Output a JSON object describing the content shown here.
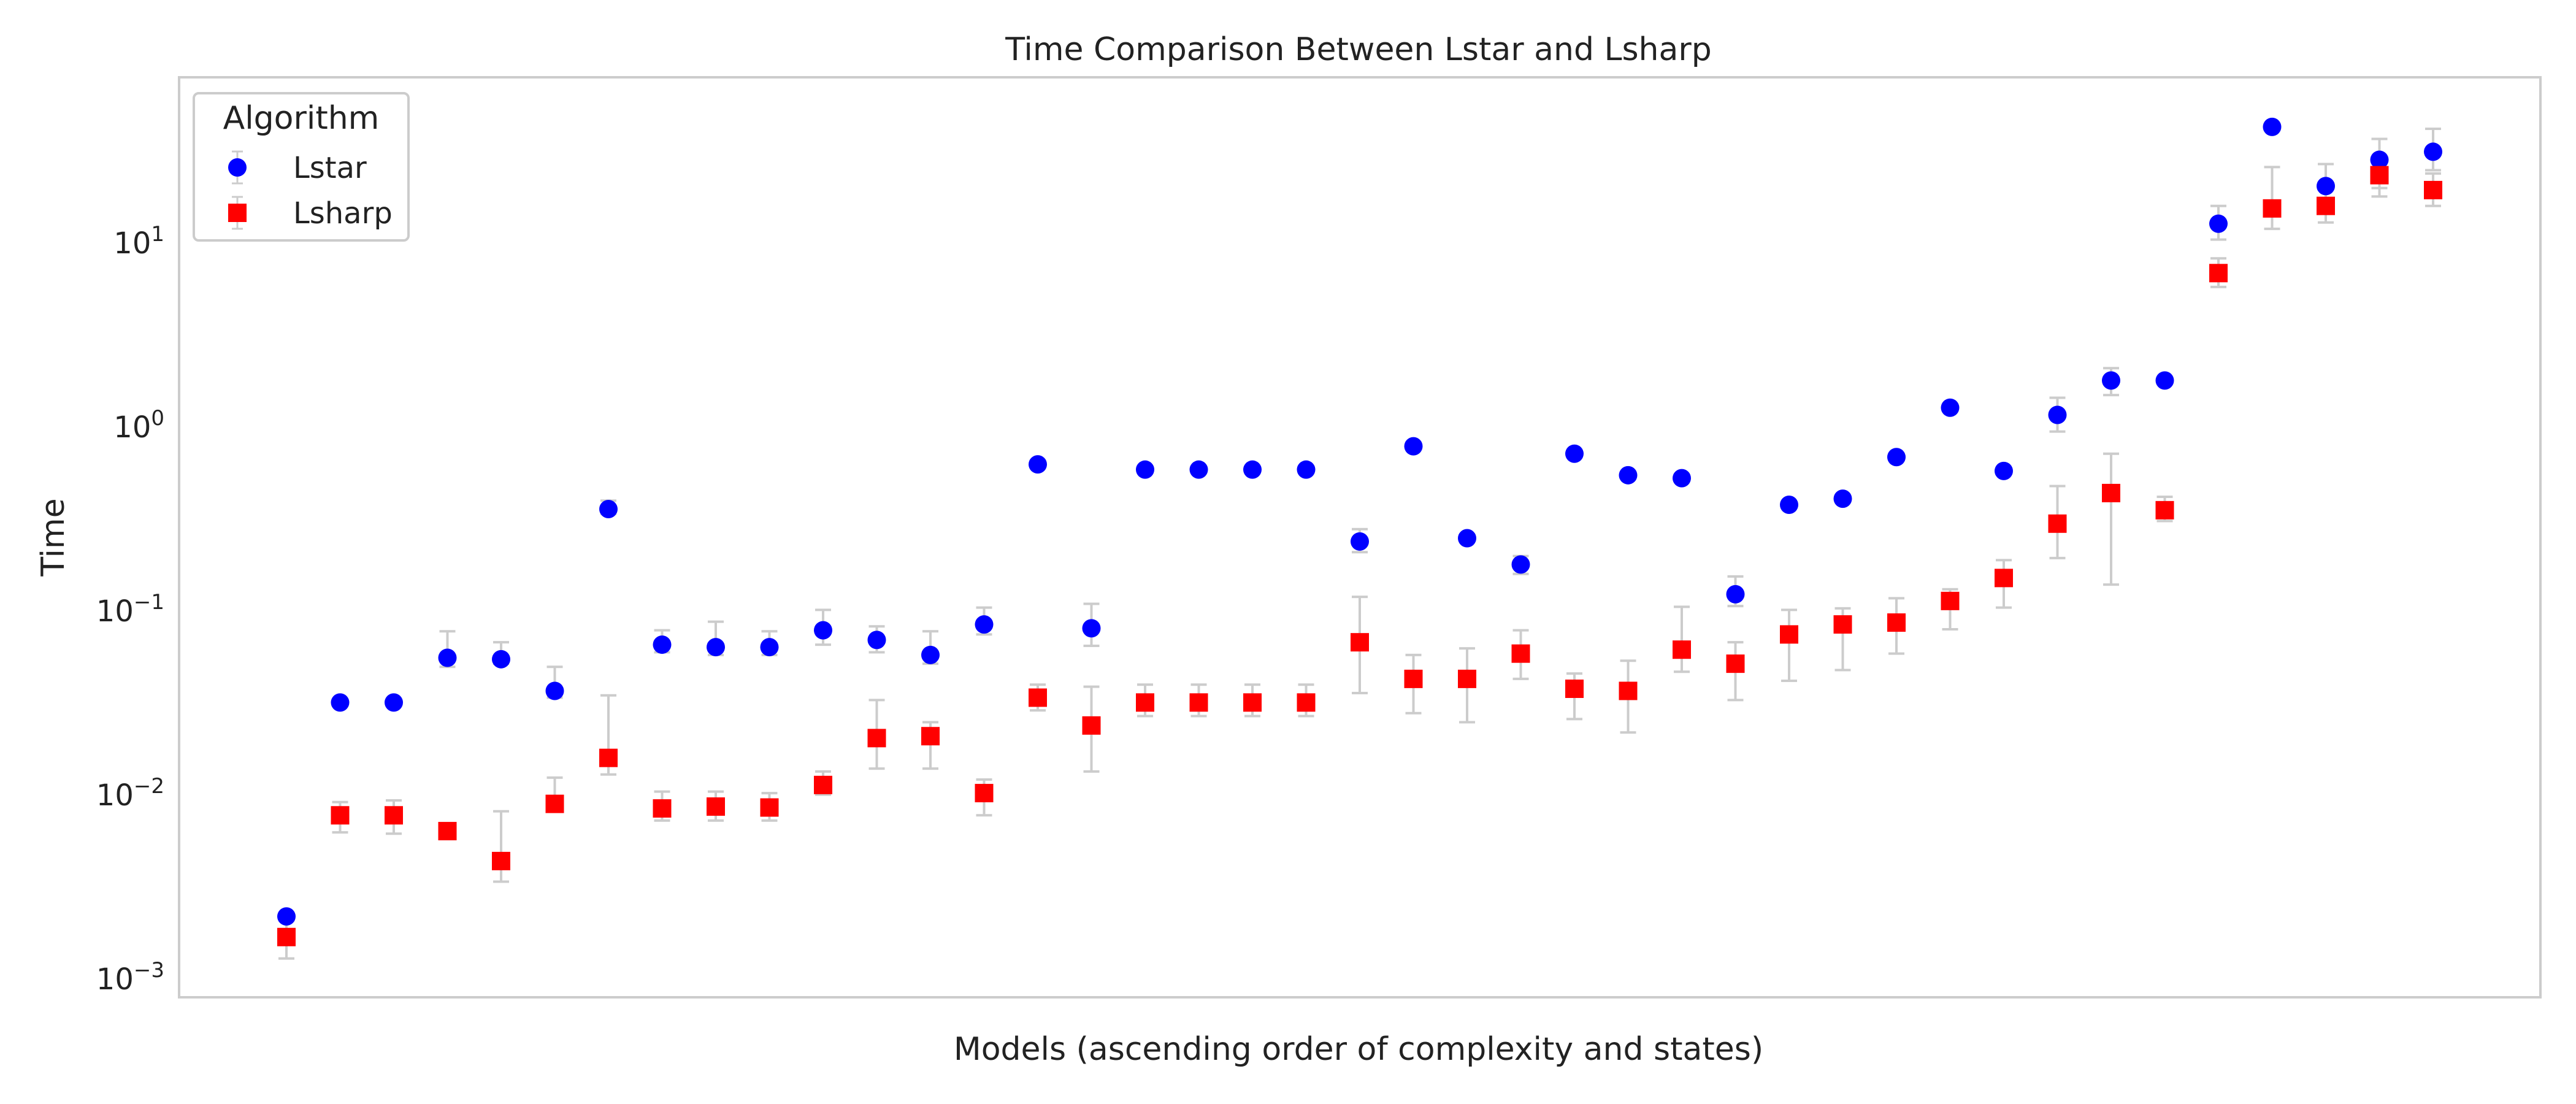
{
  "chart_data": {
    "type": "scatter",
    "title": "Time Comparison Between Lstar and Lsharp",
    "xlabel": "Models (ascending order of complexity and states)",
    "ylabel": "Time",
    "yscale": "log",
    "ylim": [
      0.0008,
      80
    ],
    "xlim": [
      -2,
      42
    ],
    "grid": false,
    "legend": {
      "title": "Algorithm",
      "position": "top-left"
    },
    "yticks": [
      {
        "value": 0.001,
        "base": "10",
        "exp": "−3"
      },
      {
        "value": 0.01,
        "base": "10",
        "exp": "−2"
      },
      {
        "value": 0.1,
        "base": "10",
        "exp": "−1"
      },
      {
        "value": 1,
        "base": "10",
        "exp": "0"
      },
      {
        "value": 10,
        "base": "10",
        "exp": "1"
      }
    ],
    "series": [
      {
        "name": "Lstar",
        "marker": "circle",
        "color": "#0000ff",
        "values": [
          0.0022,
          0.032,
          0.032,
          0.056,
          0.055,
          0.037,
          0.36,
          0.066,
          0.064,
          0.064,
          0.079,
          0.07,
          0.058,
          0.085,
          0.63,
          0.081,
          0.59,
          0.59,
          0.59,
          0.59,
          0.24,
          0.79,
          0.25,
          0.18,
          0.72,
          0.55,
          0.53,
          0.124,
          0.38,
          0.41,
          0.69,
          1.28,
          0.58,
          1.17,
          1.8,
          1.8,
          12.8,
          43,
          20.5,
          28.5,
          31.5
        ],
        "err_low": [
          0.0022,
          0.032,
          0.032,
          0.05,
          0.052,
          0.034,
          0.34,
          0.06,
          0.058,
          0.058,
          0.066,
          0.06,
          0.052,
          0.075,
          0.63,
          0.065,
          0.59,
          0.59,
          0.59,
          0.59,
          0.21,
          0.79,
          0.25,
          0.16,
          0.72,
          0.55,
          0.53,
          0.107,
          0.38,
          0.41,
          0.69,
          1.28,
          0.58,
          0.95,
          1.5,
          1.8,
          10.5,
          43,
          17,
          20,
          25
        ],
        "err_high": [
          0.0022,
          0.032,
          0.032,
          0.078,
          0.068,
          0.05,
          0.4,
          0.079,
          0.088,
          0.078,
          0.102,
          0.083,
          0.078,
          0.105,
          0.63,
          0.11,
          0.59,
          0.59,
          0.59,
          0.59,
          0.28,
          0.79,
          0.25,
          0.2,
          0.72,
          0.55,
          0.53,
          0.155,
          0.38,
          0.41,
          0.69,
          1.28,
          0.58,
          1.45,
          2.1,
          1.8,
          16,
          43,
          27,
          37,
          42
        ]
      },
      {
        "name": "Lsharp",
        "marker": "square",
        "color": "#ff0000",
        "values": [
          0.0017,
          0.0078,
          0.0078,
          0.0064,
          0.0044,
          0.009,
          0.016,
          0.0085,
          0.0087,
          0.0086,
          0.0114,
          0.0205,
          0.021,
          0.0103,
          0.034,
          0.024,
          0.032,
          0.032,
          0.032,
          0.032,
          0.068,
          0.043,
          0.043,
          0.059,
          0.038,
          0.037,
          0.062,
          0.052,
          0.075,
          0.085,
          0.087,
          0.114,
          0.152,
          0.3,
          0.44,
          0.355,
          6.9,
          15.5,
          16,
          23.5,
          19.5
        ],
        "err_low": [
          0.0013,
          0.0063,
          0.0062,
          0.0059,
          0.0034,
          0.0082,
          0.013,
          0.0073,
          0.0073,
          0.0073,
          0.0101,
          0.014,
          0.014,
          0.0078,
          0.029,
          0.0135,
          0.027,
          0.027,
          0.027,
          0.027,
          0.036,
          0.028,
          0.025,
          0.043,
          0.026,
          0.022,
          0.047,
          0.033,
          0.042,
          0.048,
          0.059,
          0.08,
          0.105,
          0.195,
          0.14,
          0.31,
          5.8,
          12,
          13,
          18,
          16
        ],
        "err_high": [
          0.0021,
          0.0092,
          0.0094,
          0.007,
          0.0082,
          0.0125,
          0.035,
          0.0105,
          0.0105,
          0.0103,
          0.0135,
          0.033,
          0.025,
          0.0122,
          0.04,
          0.039,
          0.04,
          0.04,
          0.04,
          0.04,
          0.12,
          0.058,
          0.063,
          0.079,
          0.046,
          0.054,
          0.106,
          0.068,
          0.102,
          0.104,
          0.118,
          0.132,
          0.19,
          0.48,
          0.72,
          0.42,
          8.3,
          26,
          27,
          37,
          24
        ]
      }
    ]
  }
}
